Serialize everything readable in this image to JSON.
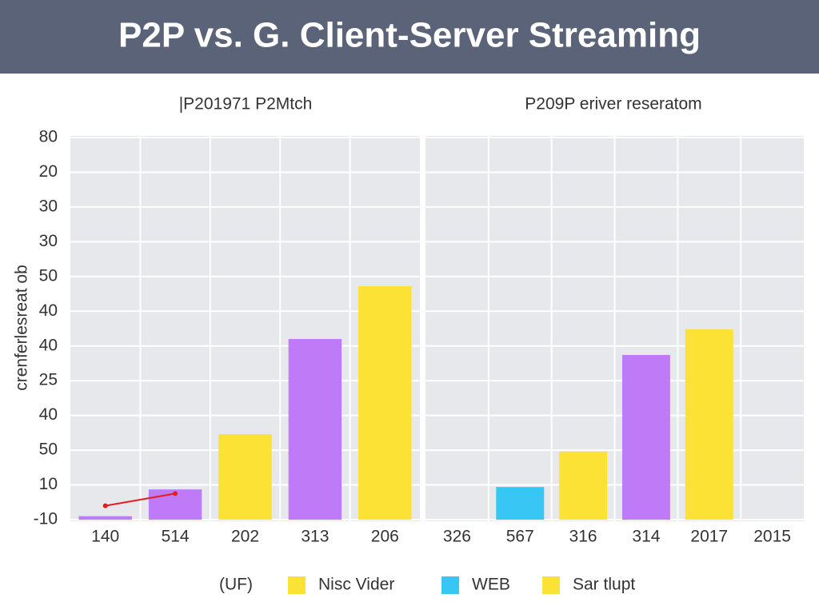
{
  "title": "P2P vs. G. Client-Server Streaming",
  "chart_data": [
    {
      "type": "bar",
      "subtitle": "|P201971 P2Mtch",
      "ylabel": "crenferlesreat ob",
      "categories": [
        "140",
        "514",
        "202",
        "313",
        "206"
      ],
      "values": [
        0.1,
        0.87,
        2.46,
        5.2,
        6.72
      ],
      "colors": [
        "#bf7af7",
        "#bf7af7",
        "#fde236",
        "#bf7af7",
        "#fde236"
      ],
      "line": {
        "color": "#e02020",
        "values": [
          0.4,
          0.75
        ]
      },
      "ylim": [
        0,
        11
      ],
      "yticks": [
        {
          "value": 11,
          "label": "80"
        },
        {
          "value": 10,
          "label": "20"
        },
        {
          "value": 9,
          "label": "30"
        },
        {
          "value": 8,
          "label": "30"
        },
        {
          "value": 7,
          "label": "50"
        },
        {
          "value": 6,
          "label": "40"
        },
        {
          "value": 5,
          "label": "40"
        },
        {
          "value": 4,
          "label": "25"
        },
        {
          "value": 3,
          "label": "40"
        },
        {
          "value": 2,
          "label": "50"
        },
        {
          "value": 1,
          "label": "10"
        },
        {
          "value": 0,
          "label": "-10"
        }
      ],
      "grid": true
    },
    {
      "type": "bar",
      "subtitle": "P209P eriver reseratom",
      "categories": [
        "326",
        "567",
        "316",
        "314",
        "2017",
        "2015"
      ],
      "values": [
        null,
        0.94,
        1.96,
        4.74,
        5.48,
        null
      ],
      "colors": [
        null,
        "#38c6f4",
        "#fde236",
        "#bf7af7",
        "#fde236",
        null
      ],
      "grid": true
    }
  ],
  "legend": {
    "title": "(UF)",
    "items": [
      {
        "name": "Nisc Vider",
        "color": "#fde236"
      },
      {
        "name": "WEB",
        "color": "#38c6f4"
      },
      {
        "name": "Sar tlupt",
        "color": "#fde236"
      }
    ]
  }
}
